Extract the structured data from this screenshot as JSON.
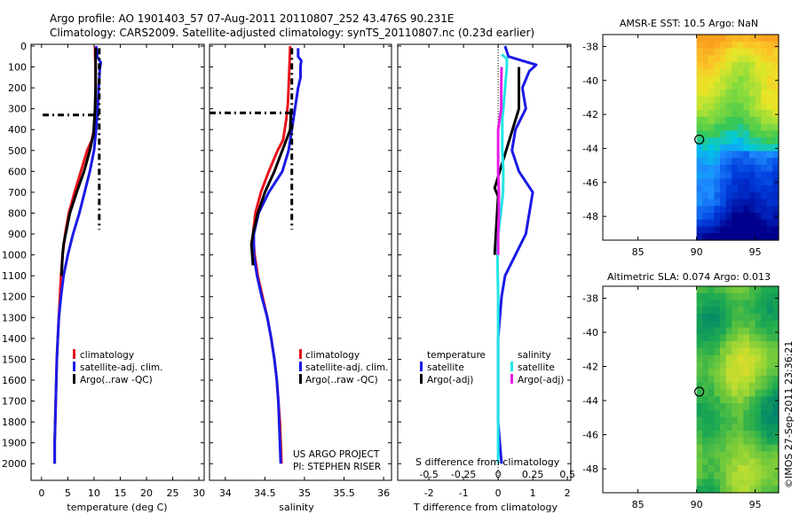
{
  "header": {
    "line1": "Argo profile: AO 1901403_57 07-Aug-2011 20110807_252 43.476S 90.231E",
    "line2": "Climatology: CARS2009. Satellite-adjusted climatology: synTS_20110807.nc (0.23d earlier)"
  },
  "project_text": {
    "line1": "US ARGO PROJECT",
    "line2": "PI: STEPHEN RISER"
  },
  "stamp": "©IMOS 27-Sep-2011 23:36:21",
  "colors": {
    "climatology": "#e8141c",
    "satellite": "#1a1ae6",
    "argo": "#000000",
    "sal_satellite": "#22e6e6",
    "sal_argo": "#e61ee6"
  },
  "chart_data": [
    {
      "type": "line",
      "id": "temperature",
      "xlabel": "temperature (deg C)",
      "xlim": [
        -2,
        31
      ],
      "ylim": [
        0,
        2050
      ],
      "xticks": [
        0,
        5,
        10,
        15,
        20,
        25,
        30
      ],
      "yticks": [
        0,
        100,
        200,
        300,
        400,
        500,
        600,
        700,
        800,
        900,
        1000,
        1100,
        1200,
        1300,
        1400,
        1500,
        1600,
        1700,
        1800,
        1900,
        2000
      ],
      "series": [
        {
          "name": "climatology",
          "color": "#e8141c",
          "width": 3,
          "points": [
            [
              10.2,
              0
            ],
            [
              10.2,
              50
            ],
            [
              10.3,
              100
            ],
            [
              10.3,
              200
            ],
            [
              10.2,
              300
            ],
            [
              10.0,
              400
            ],
            [
              9.6,
              450
            ],
            [
              8.7,
              500
            ],
            [
              7.5,
              600
            ],
            [
              6.3,
              700
            ],
            [
              5.2,
              800
            ],
            [
              4.5,
              900
            ],
            [
              4.0,
              1000
            ],
            [
              3.7,
              1100
            ],
            [
              3.5,
              1200
            ],
            [
              3.3,
              1300
            ],
            [
              3.1,
              1400
            ],
            [
              2.9,
              1500
            ],
            [
              2.8,
              1600
            ],
            [
              2.7,
              1700
            ],
            [
              2.6,
              1800
            ],
            [
              2.5,
              1900
            ],
            [
              2.5,
              2000
            ]
          ]
        },
        {
          "name": "satellite-adj. clim.",
          "color": "#1a1ae6",
          "width": 3,
          "points": [
            [
              10.4,
              0
            ],
            [
              10.6,
              50
            ],
            [
              11.3,
              80
            ],
            [
              11.1,
              110
            ],
            [
              10.9,
              200
            ],
            [
              10.7,
              300
            ],
            [
              10.4,
              400
            ],
            [
              10.0,
              500
            ],
            [
              9.2,
              600
            ],
            [
              8.2,
              700
            ],
            [
              7.2,
              800
            ],
            [
              6.0,
              900
            ],
            [
              5.0,
              1000
            ],
            [
              4.2,
              1100
            ],
            [
              3.7,
              1200
            ],
            [
              3.3,
              1300
            ],
            [
              3.1,
              1400
            ],
            [
              2.9,
              1500
            ],
            [
              2.8,
              1600
            ],
            [
              2.7,
              1700
            ],
            [
              2.6,
              1800
            ],
            [
              2.5,
              1900
            ],
            [
              2.5,
              2000
            ]
          ]
        },
        {
          "name": "Argo(..raw -QC)",
          "color": "#000000",
          "width": 3,
          "points": [
            [
              10.3,
              10
            ],
            [
              10.3,
              100
            ],
            [
              10.3,
              200
            ],
            [
              10.2,
              300
            ],
            [
              9.9,
              420
            ],
            [
              9.2,
              500
            ],
            [
              8.1,
              600
            ],
            [
              6.7,
              700
            ],
            [
              5.4,
              800
            ],
            [
              4.6,
              900
            ],
            [
              4.2,
              950
            ],
            [
              4.0,
              1000
            ],
            [
              3.8,
              1100
            ]
          ]
        },
        {
          "name": "mld temperature",
          "color": "#000000",
          "width": 3,
          "dash": "7,4,2,4",
          "points": [
            [
              11.0,
              10
            ],
            [
              11.0,
              880
            ]
          ]
        },
        {
          "name": "mld depth",
          "color": "#000000",
          "width": 3,
          "dash": "7,4,2,4",
          "points": [
            [
              0.2,
              330
            ],
            [
              11.0,
              330
            ]
          ]
        }
      ],
      "legend": [
        "climatology",
        "satellite-adj. clim.",
        "Argo(..raw -QC)"
      ]
    },
    {
      "type": "line",
      "id": "salinity",
      "xlabel": "salinity",
      "xlim": [
        33.8,
        36.1
      ],
      "ylim": [
        0,
        2050
      ],
      "xticks": [
        34,
        34.5,
        35,
        35.5,
        36
      ],
      "xticklabels": [
        "34",
        "34.5",
        "35",
        "35.5",
        "36"
      ],
      "series": [
        {
          "name": "climatology",
          "color": "#e8141c",
          "width": 3,
          "points": [
            [
              34.82,
              0
            ],
            [
              34.81,
              100
            ],
            [
              34.8,
              200
            ],
            [
              34.79,
              280
            ],
            [
              34.77,
              350
            ],
            [
              34.73,
              450
            ],
            [
              34.66,
              500
            ],
            [
              34.55,
              600
            ],
            [
              34.45,
              700
            ],
            [
              34.38,
              800
            ],
            [
              34.35,
              900
            ],
            [
              34.37,
              1000
            ],
            [
              34.41,
              1100
            ],
            [
              34.47,
              1200
            ],
            [
              34.53,
              1300
            ],
            [
              34.58,
              1400
            ],
            [
              34.62,
              1500
            ],
            [
              34.65,
              1600
            ],
            [
              34.67,
              1700
            ],
            [
              34.69,
              1800
            ],
            [
              34.7,
              1900
            ],
            [
              34.71,
              2000
            ]
          ]
        },
        {
          "name": "satellite-adj. clim.",
          "color": "#1a1ae6",
          "width": 3,
          "points": [
            [
              34.92,
              10
            ],
            [
              34.92,
              50
            ],
            [
              34.96,
              70
            ],
            [
              34.95,
              95
            ],
            [
              34.95,
              150
            ],
            [
              34.92,
              200
            ],
            [
              34.86,
              350
            ],
            [
              34.8,
              500
            ],
            [
              34.72,
              600
            ],
            [
              34.55,
              700
            ],
            [
              34.42,
              800
            ],
            [
              34.36,
              900
            ],
            [
              34.36,
              1000
            ],
            [
              34.4,
              1100
            ],
            [
              34.46,
              1200
            ],
            [
              34.53,
              1300
            ],
            [
              34.58,
              1400
            ],
            [
              34.62,
              1500
            ],
            [
              34.65,
              1600
            ],
            [
              34.67,
              1700
            ],
            [
              34.68,
              1800
            ],
            [
              34.69,
              1900
            ],
            [
              34.7,
              2000
            ]
          ]
        },
        {
          "name": "Argo(..raw -QC)",
          "color": "#000000",
          "width": 3,
          "points": [
            [
              34.83,
              300
            ],
            [
              34.82,
              400
            ],
            [
              34.77,
              450
            ],
            [
              34.7,
              520
            ],
            [
              34.62,
              600
            ],
            [
              34.5,
              700
            ],
            [
              34.41,
              800
            ],
            [
              34.35,
              900
            ],
            [
              34.33,
              950
            ],
            [
              34.34,
              1000
            ],
            [
              34.35,
              1050
            ]
          ]
        },
        {
          "name": "mld salinity",
          "color": "#000000",
          "width": 3,
          "dash": "7,4,2,4",
          "points": [
            [
              34.84,
              10
            ],
            [
              34.84,
              880
            ]
          ]
        },
        {
          "name": "mld depth",
          "color": "#000000",
          "width": 3,
          "dash": "7,4,2,4",
          "points": [
            [
              33.8,
              320
            ],
            [
              34.84,
              320
            ]
          ]
        }
      ],
      "legend": [
        "climatology",
        "satellite-adj. clim.",
        "Argo(..raw -QC)"
      ]
    },
    {
      "type": "line",
      "id": "differences",
      "xlabel": "T difference from climatology",
      "xlabel_top": "S difference from climatology",
      "xlim": [
        -2.9,
        2.1
      ],
      "ylim": [
        0,
        2050
      ],
      "xticks": [
        -2,
        -1,
        0,
        1,
        2
      ],
      "xticks_top": [
        -0.5,
        -0.25,
        0,
        0.25,
        0.5
      ],
      "xticklabels_top": [
        "-0.5",
        "-0.25",
        "0",
        "0.25",
        "0.5"
      ],
      "zero_line": true,
      "series": [
        {
          "name": "temperature satellite",
          "color": "#1a1ae6",
          "width": 3,
          "points": [
            [
              0.2,
              0
            ],
            [
              0.3,
              50
            ],
            [
              1.1,
              90
            ],
            [
              0.9,
              120
            ],
            [
              0.7,
              200
            ],
            [
              0.8,
              300
            ],
            [
              0.5,
              400
            ],
            [
              0.4,
              500
            ],
            [
              0.6,
              600
            ],
            [
              1.0,
              700
            ],
            [
              0.9,
              800
            ],
            [
              0.8,
              900
            ],
            [
              0.5,
              1000
            ],
            [
              0.2,
              1100
            ],
            [
              0.1,
              1200
            ],
            [
              0.05,
              1300
            ],
            [
              0.0,
              1400
            ],
            [
              0.0,
              1600
            ],
            [
              0.0,
              1800
            ],
            [
              0.05,
              1900
            ],
            [
              0.1,
              2000
            ]
          ]
        },
        {
          "name": "temperature Argo(-adj)",
          "color": "#000000",
          "width": 3,
          "points": [
            [
              0.6,
              100
            ],
            [
              0.6,
              200
            ],
            [
              0.6,
              300
            ],
            [
              -0.1,
              680
            ],
            [
              0.0,
              720
            ],
            [
              -0.1,
              1000
            ]
          ]
        },
        {
          "name": "salinity satellite",
          "color": "#22e6e6",
          "width": 3,
          "points": [
            [
              0.1,
              40
            ],
            [
              0.25,
              60
            ],
            [
              0.25,
              100
            ],
            [
              0.2,
              200
            ],
            [
              0.15,
              300
            ],
            [
              0.12,
              350
            ],
            [
              0.12,
              500
            ],
            [
              0.15,
              600
            ],
            [
              0.14,
              700
            ],
            [
              0.08,
              800
            ],
            [
              0.0,
              900
            ],
            [
              -0.02,
              1000
            ],
            [
              0.0,
              1200
            ],
            [
              0.0,
              1400
            ],
            [
              0.0,
              1600
            ],
            [
              0.0,
              1800
            ],
            [
              0.0,
              1900
            ],
            [
              0.0,
              2000
            ]
          ]
        },
        {
          "name": "salinity Argo(-adj)",
          "color": "#e61ee6",
          "width": 3,
          "points": [
            [
              0.1,
              100
            ],
            [
              0.09,
              200
            ],
            [
              0.09,
              300
            ],
            [
              0.0,
              400
            ],
            [
              0.0,
              500
            ],
            [
              0.0,
              600
            ],
            [
              0.02,
              700
            ],
            [
              0.02,
              800
            ],
            [
              0.0,
              900
            ],
            [
              0.0,
              1000
            ]
          ]
        }
      ],
      "legend_temperature": {
        "title": "temperature",
        "items": [
          "satellite",
          "Argo(-adj)"
        ]
      },
      "legend_salinity": {
        "title": "salinity",
        "items": [
          "satellite",
          "Argo(-adj)"
        ]
      }
    },
    {
      "type": "heatmap",
      "id": "sst_map",
      "title": "AMSR-E SST: 10.5 Argo: NaN",
      "xlim": [
        82,
        97
      ],
      "ylim": [
        -49.4,
        -37.3
      ],
      "xticks": [
        85,
        90,
        95
      ],
      "yticks": [
        -38,
        -40,
        -42,
        -44,
        -46,
        -48
      ],
      "data_xlim": [
        90,
        97
      ],
      "marker": [
        90.231,
        -43.476
      ],
      "palette": "sst"
    },
    {
      "type": "heatmap",
      "id": "sla_map",
      "title": "Altimetric SLA: 0.074 Argo: 0.013",
      "xlim": [
        82,
        97
      ],
      "ylim": [
        -49.4,
        -37.3
      ],
      "xticks": [
        85,
        90,
        95
      ],
      "yticks": [
        -38,
        -40,
        -42,
        -44,
        -46,
        -48
      ],
      "data_xlim": [
        90,
        97
      ],
      "marker": [
        90.231,
        -43.476
      ],
      "palette": "sla"
    }
  ]
}
